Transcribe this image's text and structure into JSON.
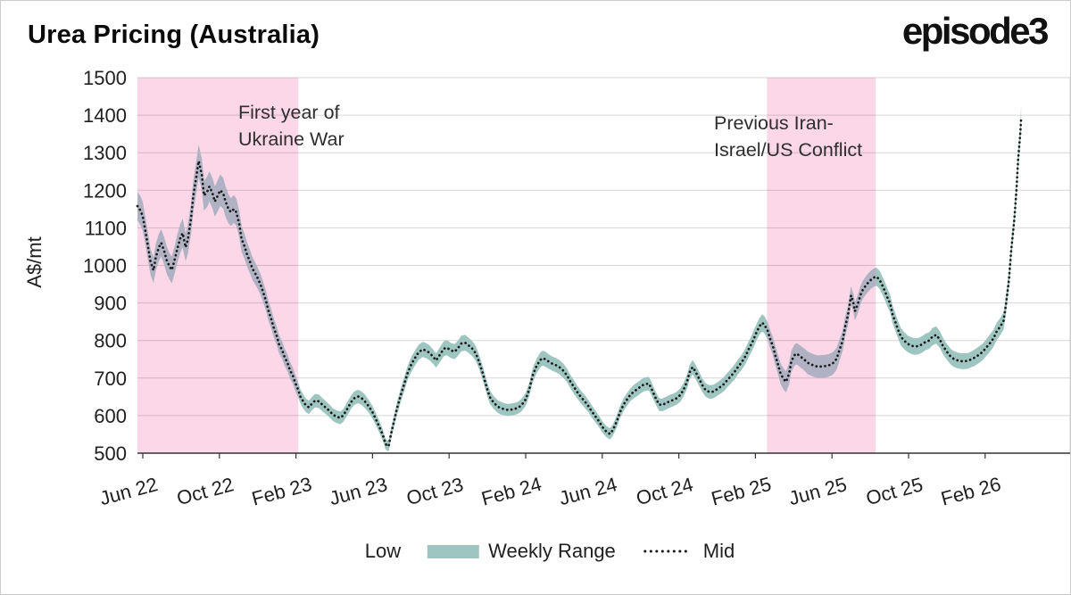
{
  "header": {
    "title": "Urea Pricing (Australia)",
    "logo": "episode3"
  },
  "colors": {
    "band_teal": "#9ec5bf",
    "band_in_highlight": "#b0b2c3",
    "highlight_pink": "#fcd7e7",
    "mid_line": "#191919",
    "grid": "rgba(0,0,0,0.16)",
    "axis": "#333333",
    "text": "#1f1f1f"
  },
  "chart_data": {
    "type": "area",
    "title": "Urea Pricing (Australia)",
    "xlabel": "",
    "ylabel": "A$/mt",
    "ylim": [
      500,
      1500
    ],
    "y_ticks": [
      500,
      600,
      700,
      800,
      900,
      1000,
      1100,
      1200,
      1300,
      1400,
      1500
    ],
    "x_ticks": [
      "Jun 22",
      "Oct 22",
      "Feb 23",
      "Jun 23",
      "Oct 23",
      "Feb 24",
      "Jun 24",
      "Oct 24",
      "Feb 25",
      "Jun 25",
      "Oct 25",
      "Feb 26"
    ],
    "x_unit_note": "t = x-tick index; 1 unit = 4 months starting Jun 2022",
    "grid": "horizontal",
    "legend_position": "bottom",
    "legend": [
      {
        "label": "Low",
        "marker": "none"
      },
      {
        "label": "Weekly Range",
        "marker": "band"
      },
      {
        "label": "Mid",
        "marker": "dotted"
      }
    ],
    "annotations": [
      {
        "text": "First year of\nUkraine War"
      },
      {
        "text": "Previous Iran-\nIsrael/US Conflict"
      }
    ],
    "highlight_regions": [
      {
        "label": "First year of Ukraine War",
        "t_from": -0.07,
        "t_to": 2.03
      },
      {
        "label": "Previous Iran-Israel/US Conflict",
        "t_from": 8.15,
        "t_to": 9.57
      }
    ],
    "series_note": "points are [t, mid, half_range] in A$/mt; low = mid - half_range, high = mid + half_range",
    "points": [
      [
        -0.07,
        1158,
        38
      ],
      [
        -0.03,
        1146,
        38
      ],
      [
        0,
        1130,
        38
      ],
      [
        0.03,
        1096,
        36
      ],
      [
        0.07,
        1048,
        35
      ],
      [
        0.1,
        1010,
        34
      ],
      [
        0.14,
        987,
        34
      ],
      [
        0.17,
        1022,
        35
      ],
      [
        0.21,
        1048,
        36
      ],
      [
        0.24,
        1060,
        36
      ],
      [
        0.28,
        1038,
        36
      ],
      [
        0.31,
        1015,
        36
      ],
      [
        0.35,
        997,
        35
      ],
      [
        0.38,
        988,
        35
      ],
      [
        0.42,
        1018,
        36
      ],
      [
        0.45,
        1044,
        37
      ],
      [
        0.49,
        1072,
        38
      ],
      [
        0.52,
        1086,
        38
      ],
      [
        0.56,
        1048,
        37
      ],
      [
        0.59,
        1070,
        38
      ],
      [
        0.63,
        1126,
        40
      ],
      [
        0.66,
        1185,
        41
      ],
      [
        0.7,
        1238,
        42
      ],
      [
        0.73,
        1278,
        43
      ],
      [
        0.77,
        1242,
        42
      ],
      [
        0.8,
        1186,
        40
      ],
      [
        0.84,
        1196,
        40
      ],
      [
        0.87,
        1210,
        40
      ],
      [
        0.91,
        1192,
        40
      ],
      [
        0.94,
        1170,
        40
      ],
      [
        0.98,
        1186,
        41
      ],
      [
        1.01,
        1200,
        42
      ],
      [
        1.05,
        1192,
        41
      ],
      [
        1.08,
        1170,
        40
      ],
      [
        1.12,
        1150,
        38
      ],
      [
        1.15,
        1142,
        37
      ],
      [
        1.19,
        1150,
        37
      ],
      [
        1.22,
        1142,
        36
      ],
      [
        1.26,
        1110,
        35
      ],
      [
        1.29,
        1070,
        34
      ],
      [
        1.33,
        1050,
        33
      ],
      [
        1.36,
        1030,
        32
      ],
      [
        1.4,
        1010,
        31
      ],
      [
        1.43,
        992,
        30
      ],
      [
        1.47,
        978,
        29
      ],
      [
        1.5,
        966,
        28
      ],
      [
        1.54,
        948,
        27
      ],
      [
        1.57,
        930,
        27
      ],
      [
        1.61,
        905,
        26
      ],
      [
        1.64,
        880,
        26
      ],
      [
        1.68,
        856,
        25
      ],
      [
        1.71,
        834,
        25
      ],
      [
        1.75,
        812,
        24
      ],
      [
        1.78,
        790,
        24
      ],
      [
        1.82,
        774,
        23
      ],
      [
        1.85,
        757,
        23
      ],
      [
        1.89,
        740,
        22
      ],
      [
        1.92,
        722,
        22
      ],
      [
        1.96,
        706,
        21
      ],
      [
        1.99,
        688,
        21
      ],
      [
        2.03,
        668,
        20
      ],
      [
        2.06,
        650,
        19
      ],
      [
        2.1,
        636,
        19
      ],
      [
        2.13,
        627,
        18
      ],
      [
        2.17,
        622,
        18
      ],
      [
        2.2,
        630,
        18
      ],
      [
        2.25,
        640,
        18
      ],
      [
        2.3,
        638,
        18
      ],
      [
        2.34,
        630,
        18
      ],
      [
        2.39,
        621,
        17
      ],
      [
        2.44,
        612,
        17
      ],
      [
        2.48,
        603,
        17
      ],
      [
        2.53,
        597,
        17
      ],
      [
        2.58,
        594,
        17
      ],
      [
        2.62,
        601,
        17
      ],
      [
        2.67,
        618,
        18
      ],
      [
        2.72,
        636,
        18
      ],
      [
        2.76,
        646,
        18
      ],
      [
        2.81,
        651,
        18
      ],
      [
        2.86,
        646,
        18
      ],
      [
        2.9,
        638,
        18
      ],
      [
        2.95,
        625,
        17
      ],
      [
        3.0,
        609,
        17
      ],
      [
        3.04,
        592,
        16
      ],
      [
        3.09,
        570,
        16
      ],
      [
        3.14,
        545,
        15
      ],
      [
        3.17,
        524,
        14
      ],
      [
        3.21,
        518,
        14
      ],
      [
        3.24,
        550,
        15
      ],
      [
        3.28,
        584,
        16
      ],
      [
        3.32,
        620,
        17
      ],
      [
        3.37,
        655,
        18
      ],
      [
        3.42,
        688,
        19
      ],
      [
        3.46,
        715,
        19
      ],
      [
        3.51,
        738,
        20
      ],
      [
        3.56,
        755,
        20
      ],
      [
        3.6,
        768,
        20
      ],
      [
        3.65,
        776,
        20
      ],
      [
        3.69,
        774,
        20
      ],
      [
        3.74,
        768,
        20
      ],
      [
        3.79,
        757,
        19
      ],
      [
        3.83,
        747,
        19
      ],
      [
        3.88,
        762,
        20
      ],
      [
        3.93,
        778,
        20
      ],
      [
        3.97,
        781,
        20
      ],
      [
        4.02,
        774,
        20
      ],
      [
        4.07,
        770,
        20
      ],
      [
        4.11,
        778,
        20
      ],
      [
        4.16,
        792,
        21
      ],
      [
        4.21,
        794,
        21
      ],
      [
        4.25,
        788,
        20
      ],
      [
        4.3,
        779,
        20
      ],
      [
        4.35,
        765,
        20
      ],
      [
        4.39,
        744,
        19
      ],
      [
        4.44,
        712,
        19
      ],
      [
        4.49,
        676,
        18
      ],
      [
        4.53,
        650,
        18
      ],
      [
        4.58,
        635,
        17
      ],
      [
        4.63,
        625,
        17
      ],
      [
        4.67,
        620,
        17
      ],
      [
        4.72,
        617,
        16
      ],
      [
        4.77,
        615,
        16
      ],
      [
        4.81,
        616,
        16
      ],
      [
        4.86,
        618,
        16
      ],
      [
        4.91,
        622,
        16
      ],
      [
        4.95,
        629,
        17
      ],
      [
        5.0,
        643,
        17
      ],
      [
        5.05,
        672,
        18
      ],
      [
        5.09,
        706,
        19
      ],
      [
        5.14,
        731,
        19
      ],
      [
        5.19,
        748,
        20
      ],
      [
        5.22,
        753,
        20
      ],
      [
        5.26,
        750,
        20
      ],
      [
        5.3,
        744,
        19
      ],
      [
        5.35,
        738,
        19
      ],
      [
        5.4,
        734,
        19
      ],
      [
        5.44,
        729,
        19
      ],
      [
        5.49,
        720,
        19
      ],
      [
        5.54,
        707,
        18
      ],
      [
        5.58,
        692,
        18
      ],
      [
        5.63,
        676,
        18
      ],
      [
        5.68,
        661,
        17
      ],
      [
        5.72,
        650,
        17
      ],
      [
        5.77,
        638,
        17
      ],
      [
        5.82,
        625,
        16
      ],
      [
        5.86,
        612,
        16
      ],
      [
        5.91,
        598,
        16
      ],
      [
        5.96,
        584,
        15
      ],
      [
        6.0,
        570,
        15
      ],
      [
        6.05,
        558,
        15
      ],
      [
        6.1,
        551,
        15
      ],
      [
        6.14,
        562,
        15
      ],
      [
        6.19,
        585,
        16
      ],
      [
        6.23,
        608,
        16
      ],
      [
        6.28,
        630,
        17
      ],
      [
        6.33,
        645,
        17
      ],
      [
        6.37,
        656,
        17
      ],
      [
        6.42,
        665,
        18
      ],
      [
        6.47,
        672,
        18
      ],
      [
        6.51,
        679,
        18
      ],
      [
        6.56,
        684,
        18
      ],
      [
        6.61,
        685,
        18
      ],
      [
        6.64,
        673,
        18
      ],
      [
        6.69,
        650,
        17
      ],
      [
        6.74,
        630,
        17
      ],
      [
        6.78,
        628,
        17
      ],
      [
        6.83,
        633,
        17
      ],
      [
        6.88,
        638,
        17
      ],
      [
        6.92,
        641,
        17
      ],
      [
        6.97,
        646,
        17
      ],
      [
        7.02,
        655,
        18
      ],
      [
        7.06,
        668,
        18
      ],
      [
        7.11,
        692,
        19
      ],
      [
        7.14,
        715,
        19
      ],
      [
        7.18,
        729,
        19
      ],
      [
        7.21,
        720,
        19
      ],
      [
        7.26,
        700,
        19
      ],
      [
        7.31,
        680,
        18
      ],
      [
        7.35,
        668,
        18
      ],
      [
        7.4,
        663,
        18
      ],
      [
        7.45,
        664,
        18
      ],
      [
        7.49,
        669,
        18
      ],
      [
        7.54,
        676,
        18
      ],
      [
        7.59,
        684,
        19
      ],
      [
        7.63,
        694,
        19
      ],
      [
        7.68,
        705,
        19
      ],
      [
        7.73,
        717,
        20
      ],
      [
        7.77,
        729,
        20
      ],
      [
        7.82,
        742,
        20
      ],
      [
        7.87,
        758,
        21
      ],
      [
        7.91,
        776,
        21
      ],
      [
        7.96,
        796,
        22
      ],
      [
        8.01,
        820,
        22
      ],
      [
        8.05,
        837,
        22
      ],
      [
        8.09,
        847,
        23
      ],
      [
        8.12,
        841,
        23
      ],
      [
        8.16,
        826,
        23
      ],
      [
        8.19,
        806,
        23
      ],
      [
        8.23,
        784,
        24
      ],
      [
        8.26,
        760,
        25
      ],
      [
        8.3,
        733,
        26
      ],
      [
        8.33,
        711,
        27
      ],
      [
        8.37,
        697,
        28
      ],
      [
        8.4,
        690,
        28
      ],
      [
        8.44,
        712,
        28
      ],
      [
        8.47,
        745,
        28
      ],
      [
        8.51,
        761,
        28
      ],
      [
        8.54,
        765,
        28
      ],
      [
        8.59,
        757,
        29
      ],
      [
        8.64,
        749,
        29
      ],
      [
        8.68,
        741,
        30
      ],
      [
        8.73,
        736,
        30
      ],
      [
        8.78,
        732,
        30
      ],
      [
        8.82,
        730,
        30
      ],
      [
        8.87,
        731,
        30
      ],
      [
        8.92,
        732,
        30
      ],
      [
        8.96,
        734,
        30
      ],
      [
        9.01,
        739,
        30
      ],
      [
        9.06,
        751,
        29
      ],
      [
        9.1,
        776,
        28
      ],
      [
        9.14,
        800,
        27
      ],
      [
        9.17,
        835,
        26
      ],
      [
        9.21,
        868,
        25
      ],
      [
        9.23,
        895,
        25
      ],
      [
        9.25,
        920,
        24
      ],
      [
        9.28,
        900,
        24
      ],
      [
        9.3,
        878,
        24
      ],
      [
        9.32,
        888,
        24
      ],
      [
        9.35,
        905,
        24
      ],
      [
        9.37,
        920,
        24
      ],
      [
        9.4,
        934,
        24
      ],
      [
        9.44,
        946,
        24
      ],
      [
        9.48,
        956,
        24
      ],
      [
        9.51,
        962,
        24
      ],
      [
        9.55,
        968,
        24
      ],
      [
        9.58,
        970,
        24
      ],
      [
        9.62,
        962,
        24
      ],
      [
        9.65,
        950,
        24
      ],
      [
        9.69,
        932,
        24
      ],
      [
        9.72,
        916,
        24
      ],
      [
        9.76,
        898,
        24
      ],
      [
        9.79,
        870,
        24
      ],
      [
        9.83,
        848,
        23
      ],
      [
        9.86,
        830,
        23
      ],
      [
        9.9,
        810,
        23
      ],
      [
        9.94,
        800,
        23
      ],
      [
        9.99,
        791,
        22
      ],
      [
        10.04,
        786,
        22
      ],
      [
        10.08,
        784,
        22
      ],
      [
        10.13,
        785,
        22
      ],
      [
        10.17,
        789,
        22
      ],
      [
        10.22,
        796,
        22
      ],
      [
        10.27,
        800,
        22
      ],
      [
        10.31,
        810,
        23
      ],
      [
        10.36,
        815,
        23
      ],
      [
        10.41,
        802,
        22
      ],
      [
        10.45,
        785,
        22
      ],
      [
        10.5,
        770,
        21
      ],
      [
        10.55,
        757,
        21
      ],
      [
        10.59,
        751,
        21
      ],
      [
        10.64,
        747,
        21
      ],
      [
        10.69,
        745,
        21
      ],
      [
        10.73,
        745,
        21
      ],
      [
        10.78,
        746,
        21
      ],
      [
        10.83,
        751,
        21
      ],
      [
        10.87,
        755,
        22
      ],
      [
        10.92,
        762,
        22
      ],
      [
        10.97,
        770,
        22
      ],
      [
        11.01,
        780,
        22
      ],
      [
        11.06,
        792,
        23
      ],
      [
        11.11,
        806,
        23
      ],
      [
        11.15,
        824,
        23
      ],
      [
        11.2,
        838,
        23
      ],
      [
        11.24,
        852,
        23
      ],
      [
        11.27,
        893,
        24
      ],
      [
        11.31,
        960,
        24
      ],
      [
        11.34,
        1040,
        24
      ],
      [
        11.38,
        1120,
        24
      ],
      [
        11.41,
        1205,
        24
      ],
      [
        11.43,
        1280,
        25
      ],
      [
        11.46,
        1355,
        25
      ],
      [
        11.47,
        1392,
        35
      ]
    ]
  }
}
